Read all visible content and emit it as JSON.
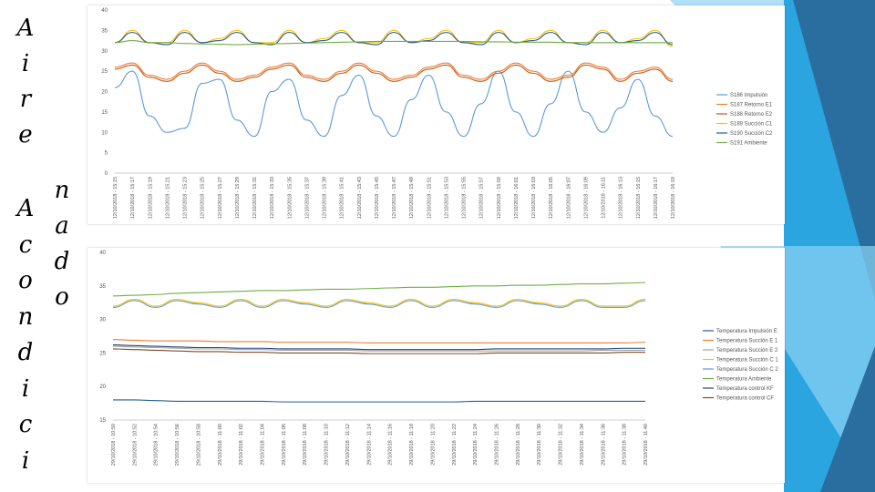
{
  "title": {
    "column1": [
      "A",
      "i",
      "r",
      "e"
    ],
    "column2": [
      "n",
      "a",
      "d",
      "o"
    ],
    "column3": [
      "A",
      "c",
      "o",
      "n",
      "d",
      "i",
      "c",
      "i"
    ]
  },
  "colors": {
    "decoration_light": "#8fd3f4",
    "decoration_mid": "#2aa5e0",
    "decoration_dark": "#2a6e9f"
  },
  "chart_data": [
    {
      "type": "line",
      "ylim": [
        0,
        40
      ],
      "yticks": [
        0,
        5,
        10,
        15,
        20,
        25,
        30,
        35,
        40
      ],
      "grid": false,
      "legend_position": "right",
      "categories": [
        "12/10/2018 - 15:15",
        "12/10/2018 - 15:17",
        "12/10/2018 - 15:19",
        "12/10/2018 - 15:21",
        "12/10/2018 - 15:23",
        "12/10/2018 - 15:25",
        "12/10/2018 - 15:27",
        "12/10/2018 - 15:29",
        "12/10/2018 - 15:31",
        "12/10/2018 - 15:33",
        "12/10/2018 - 15:35",
        "12/10/2018 - 15:37",
        "12/10/2018 - 15:39",
        "12/10/2018 - 15:41",
        "12/10/2018 - 15:43",
        "12/10/2018 - 15:45",
        "12/10/2018 - 15:47",
        "12/10/2018 - 15:49",
        "12/10/2018 - 15:51",
        "12/10/2018 - 15:53",
        "12/10/2018 - 15:55",
        "12/10/2018 - 15:57",
        "12/10/2018 - 15:59",
        "12/10/2018 - 16:01",
        "12/10/2018 - 16:03",
        "12/10/2018 - 16:05",
        "12/10/2018 - 16:07",
        "12/10/2018 - 16:09",
        "12/10/2018 - 16:11",
        "12/10/2018 - 16:13",
        "12/10/2018 - 16:15",
        "12/10/2018 - 16:17",
        "12/10/2018 - 16:19"
      ],
      "series": [
        {
          "name": "S186 Impulsión",
          "color": "#5b9bd5",
          "values": [
            21,
            25,
            14,
            10,
            11,
            22,
            23,
            13,
            9,
            20,
            23,
            13,
            9,
            19,
            24,
            14,
            9,
            18,
            24,
            15,
            9,
            17,
            25,
            15,
            9,
            17,
            25,
            15,
            10,
            16,
            23,
            14,
            9
          ]
        },
        {
          "name": "S187 Retorno E1",
          "color": "#ed7d31",
          "values": [
            26,
            27,
            24,
            23,
            25,
            27,
            25,
            23,
            24,
            26,
            27,
            24,
            23,
            25,
            27,
            25,
            23,
            24,
            26,
            27,
            24,
            23,
            25,
            27,
            25,
            23,
            24,
            27,
            26,
            23,
            25,
            26,
            23
          ]
        },
        {
          "name": "S188 Retorno E2",
          "color": "#c55a11",
          "values": [
            25.5,
            26.5,
            23.5,
            22.5,
            24.5,
            26.5,
            24.5,
            22.5,
            23.5,
            25.5,
            26.5,
            23.5,
            22.5,
            24.5,
            26.5,
            24.5,
            22.5,
            23.5,
            25.5,
            26.5,
            23.5,
            22.5,
            24.5,
            26.5,
            24.5,
            22.5,
            23.5,
            26.5,
            25.5,
            22.5,
            24.5,
            25.5,
            22.5
          ]
        },
        {
          "name": "S189 Succión C1",
          "color": "#ffc000",
          "values": [
            32,
            35,
            32,
            32,
            35,
            32,
            33,
            35,
            32,
            32,
            35,
            32,
            33,
            35,
            32,
            32,
            35,
            32,
            33,
            35,
            32,
            32,
            35,
            32,
            33,
            35,
            32,
            32,
            35,
            32,
            33,
            35,
            31
          ]
        },
        {
          "name": "S190 Succión C2",
          "color": "#255e91",
          "values": [
            32,
            34.5,
            32,
            31.5,
            34.5,
            32,
            32.5,
            34.5,
            32,
            31.5,
            34.5,
            32,
            32.5,
            34.5,
            32,
            31.5,
            34.5,
            32,
            32.5,
            34.5,
            32,
            31.5,
            34.5,
            32,
            32.5,
            34.5,
            32,
            31.5,
            34.5,
            32,
            32.5,
            34.5,
            31.5
          ]
        },
        {
          "name": "S191 Ambiente",
          "color": "#70ad47",
          "values": [
            32,
            32.5,
            32,
            32,
            31.8,
            31.7,
            31.6,
            31.5,
            31.6,
            31.7,
            31.8,
            31.9,
            32,
            32.1,
            32.2,
            32.3,
            32.3,
            32.3,
            32.3,
            32.3,
            32.3,
            32.2,
            32.2,
            32.1,
            32.1,
            32.1,
            32,
            32,
            32,
            32,
            32,
            32,
            32
          ]
        }
      ]
    },
    {
      "type": "line",
      "ylim": [
        15,
        40
      ],
      "yticks": [
        15,
        20,
        25,
        30,
        35,
        40
      ],
      "grid": false,
      "legend_position": "right",
      "categories": [
        "29/10/2018 - 10:50",
        "29/10/2018 - 10:52",
        "29/10/2018 - 10:54",
        "29/10/2018 - 10:56",
        "29/10/2018 - 10:58",
        "29/10/2018 - 11:00",
        "29/10/2018 - 11:02",
        "29/10/2018 - 11:04",
        "29/10/2018 - 11:06",
        "29/10/2018 - 11:08",
        "29/10/2018 - 11:10",
        "29/10/2018 - 11:12",
        "29/10/2018 - 11:14",
        "29/10/2018 - 11:16",
        "29/10/2018 - 11:18",
        "29/10/2018 - 11:20",
        "29/10/2018 - 11:22",
        "29/10/2018 - 11:24",
        "29/10/2018 - 11:26",
        "29/10/2018 - 11:28",
        "29/10/2018 - 11:30",
        "29/10/2018 - 11:32",
        "29/10/2018 - 11:34",
        "29/10/2018 - 11:36",
        "29/10/2018 - 11:38",
        "29/10/2018 - 11:40"
      ],
      "series": [
        {
          "name": "Temperatura Impulsión E",
          "color": "#255e91",
          "values": [
            18,
            18,
            17.9,
            17.8,
            17.8,
            17.8,
            17.8,
            17.8,
            17.7,
            17.7,
            17.7,
            17.7,
            17.7,
            17.7,
            17.7,
            17.7,
            17.7,
            17.8,
            17.8,
            17.8,
            17.8,
            17.8,
            17.8,
            17.8,
            17.8,
            17.8
          ]
        },
        {
          "name": "Temperatura Succión E 1",
          "color": "#ed7d31",
          "values": [
            27,
            26.9,
            26.8,
            26.8,
            26.8,
            26.7,
            26.7,
            26.7,
            26.6,
            26.6,
            26.6,
            26.6,
            26.5,
            26.5,
            26.5,
            26.5,
            26.5,
            26.5,
            26.5,
            26.5,
            26.5,
            26.5,
            26.5,
            26.5,
            26.5,
            26.6
          ]
        },
        {
          "name": "Temperatura Succión E 2",
          "color": "#a5a5a5",
          "values": [
            26,
            25.9,
            25.8,
            25.7,
            25.6,
            25.6,
            25.5,
            25.5,
            25.4,
            25.4,
            25.4,
            25.4,
            25.3,
            25.3,
            25.3,
            25.3,
            25.3,
            25.3,
            25.3,
            25.3,
            25.3,
            25.3,
            25.3,
            25.4,
            25.4,
            25.4
          ]
        },
        {
          "name": "Temperatura Succión C 1",
          "color": "#ffc000",
          "values": [
            32,
            33,
            32,
            33,
            32.5,
            32,
            33,
            32,
            33,
            32.5,
            32,
            33,
            32.5,
            32,
            33,
            32,
            33,
            32.5,
            32,
            33,
            32.5,
            32,
            33,
            32,
            32,
            33
          ]
        },
        {
          "name": "Temperatura Succión C 2",
          "color": "#5b9bd5",
          "values": [
            31.8,
            32.8,
            31.8,
            32.8,
            32.3,
            31.8,
            32.8,
            31.8,
            32.8,
            32.3,
            31.8,
            32.8,
            32.3,
            31.8,
            32.8,
            31.8,
            32.8,
            32.3,
            31.8,
            32.8,
            32.3,
            31.8,
            32.8,
            31.8,
            31.8,
            32.8
          ]
        },
        {
          "name": "Temperatura Ambiente",
          "color": "#70ad47",
          "values": [
            33.5,
            33.6,
            33.7,
            33.9,
            34,
            34.1,
            34.2,
            34.3,
            34.3,
            34.4,
            34.5,
            34.5,
            34.6,
            34.7,
            34.8,
            34.8,
            34.9,
            35,
            35,
            35.1,
            35.1,
            35.2,
            35.3,
            35.3,
            35.4,
            35.5
          ]
        },
        {
          "name": "Temperatura control KF",
          "color": "#264478",
          "values": [
            26.2,
            26.1,
            26,
            25.9,
            25.8,
            25.8,
            25.7,
            25.7,
            25.6,
            25.6,
            25.6,
            25.6,
            25.5,
            25.5,
            25.5,
            25.5,
            25.5,
            25.5,
            25.6,
            25.6,
            25.6,
            25.6,
            25.6,
            25.6,
            25.7,
            25.7
          ]
        },
        {
          "name": "Temperatura control CF",
          "color": "#7f4a26",
          "values": [
            25.6,
            25.5,
            25.4,
            25.3,
            25.2,
            25.2,
            25.1,
            25.1,
            25,
            25,
            25,
            25,
            24.9,
            24.9,
            24.9,
            24.9,
            24.9,
            24.9,
            25,
            25,
            25,
            25,
            25,
            25,
            25.1,
            25.1
          ]
        }
      ]
    }
  ]
}
